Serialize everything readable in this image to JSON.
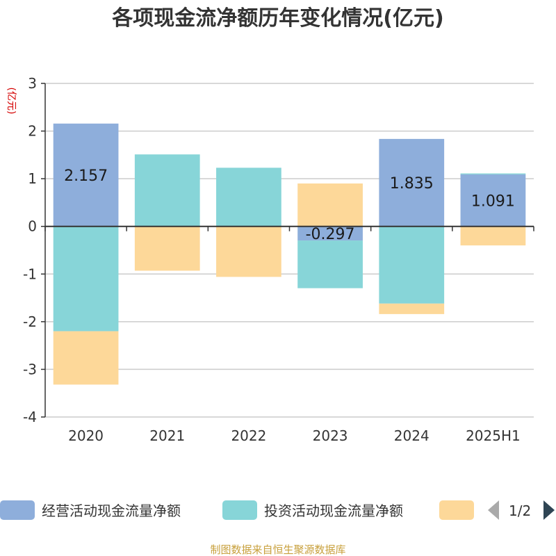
{
  "chart_data": {
    "type": "bar",
    "stacked": true,
    "title": "各项现金流净额历年变化情况(亿元)",
    "ylabel": "(亿元)",
    "categories": [
      "2020",
      "2021",
      "2022",
      "2023",
      "2024",
      "2025H1"
    ],
    "ylim": [
      -4,
      3
    ],
    "yticks": [
      3,
      2,
      1,
      0,
      -1,
      -2,
      -3,
      -4
    ],
    "grid": true,
    "series": [
      {
        "name": "经营活动现金流量净额",
        "color": "#8eaedb",
        "values": [
          2.157,
          0.01,
          0.01,
          -0.297,
          1.835,
          1.091
        ],
        "labels": [
          "2.157",
          "",
          "",
          "-0.297",
          "1.835",
          "1.091"
        ]
      },
      {
        "name": "投资活动现金流量净额",
        "color": "#87d5d8",
        "values": [
          -2.2,
          1.5,
          1.22,
          -1.0,
          -1.62,
          0.02
        ],
        "labels": [
          "",
          "",
          "",
          "",
          "",
          ""
        ]
      },
      {
        "name": "",
        "color": "#fdd899",
        "values": [
          -1.12,
          -0.93,
          -1.06,
          0.9,
          -0.22,
          -0.4
        ],
        "labels": [
          "",
          "",
          "",
          "",
          "",
          ""
        ]
      }
    ],
    "legend": {
      "position": "bottom",
      "page": "1/2"
    }
  },
  "source": "制图数据来自恒生聚源数据库"
}
